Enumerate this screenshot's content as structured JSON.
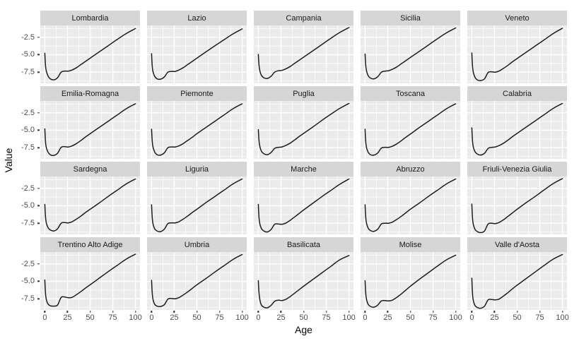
{
  "figure": {
    "xlabel": "Age",
    "ylabel": "Value"
  },
  "style": {
    "panel_bg": "#EBEBEB",
    "strip_bg": "#D6D6D6",
    "grid_color": "#FFFFFF",
    "line_color": "#1C1C1C",
    "axis_text_color": "#4D4D4D",
    "tick_mark_color": "#333333"
  },
  "chart_data": {
    "type": "line",
    "facet_variable": "Region",
    "ncol": 5,
    "title": "",
    "xlabel": "Age",
    "ylabel": "Value",
    "x_range": [
      -5,
      105
    ],
    "y_range": [
      -9.1,
      -0.8
    ],
    "x_ticks": [
      0,
      25,
      50,
      75,
      100
    ],
    "x_tick_labels": [
      "0",
      "25",
      "50",
      "75",
      "100"
    ],
    "y_ticks": [
      -2.5,
      -5.0,
      -7.5
    ],
    "y_tick_labels": [
      "-2.5",
      "-5.0",
      "-7.5"
    ],
    "x_minor": [
      12.5,
      37.5,
      62.5,
      87.5
    ],
    "y_minor": [
      -1.25,
      -3.75,
      -6.25,
      -8.75
    ],
    "grid": true,
    "legend": "none",
    "x": [
      0,
      1,
      3,
      6,
      10,
      14,
      18,
      22,
      26,
      30,
      35,
      40,
      45,
      50,
      60,
      70,
      80,
      90,
      100
    ],
    "series": [
      {
        "name": "Lombardia",
        "values": [
          -4.8,
          -6.9,
          -7.9,
          -8.45,
          -8.6,
          -8.3,
          -7.5,
          -7.35,
          -7.35,
          -7.2,
          -6.85,
          -6.4,
          -5.95,
          -5.5,
          -4.6,
          -3.7,
          -2.8,
          -1.95,
          -1.25
        ]
      },
      {
        "name": "Lazio",
        "values": [
          -4.85,
          -7.0,
          -8.0,
          -8.45,
          -8.5,
          -8.2,
          -7.5,
          -7.4,
          -7.4,
          -7.2,
          -6.85,
          -6.4,
          -5.95,
          -5.5,
          -4.6,
          -3.7,
          -2.85,
          -2.0,
          -1.3
        ]
      },
      {
        "name": "Campania",
        "values": [
          -4.95,
          -6.8,
          -7.85,
          -8.3,
          -8.4,
          -8.1,
          -7.5,
          -7.3,
          -7.25,
          -7.05,
          -6.7,
          -6.25,
          -5.8,
          -5.35,
          -4.45,
          -3.55,
          -2.65,
          -1.8,
          -1.1
        ]
      },
      {
        "name": "Sicilia",
        "values": [
          -4.9,
          -6.85,
          -7.9,
          -8.35,
          -8.45,
          -8.15,
          -7.5,
          -7.35,
          -7.3,
          -7.1,
          -6.75,
          -6.3,
          -5.85,
          -5.4,
          -4.5,
          -3.6,
          -2.7,
          -1.85,
          -1.15
        ]
      },
      {
        "name": "Veneto",
        "values": [
          -4.75,
          -7.0,
          -8.1,
          -8.6,
          -8.7,
          -8.45,
          -7.55,
          -7.45,
          -7.5,
          -7.35,
          -6.95,
          -6.5,
          -6.0,
          -5.55,
          -4.65,
          -3.75,
          -2.85,
          -1.95,
          -1.2
        ]
      },
      {
        "name": "Emilia-Romagna",
        "values": [
          -4.8,
          -7.0,
          -8.0,
          -8.5,
          -8.6,
          -8.3,
          -7.45,
          -7.35,
          -7.4,
          -7.25,
          -6.9,
          -6.45,
          -5.95,
          -5.5,
          -4.6,
          -3.7,
          -2.8,
          -1.9,
          -1.2
        ]
      },
      {
        "name": "Piemonte",
        "values": [
          -4.85,
          -6.95,
          -8.0,
          -8.5,
          -8.55,
          -8.25,
          -7.5,
          -7.4,
          -7.4,
          -7.25,
          -6.9,
          -6.45,
          -6.0,
          -5.5,
          -4.6,
          -3.7,
          -2.8,
          -1.9,
          -1.2
        ]
      },
      {
        "name": "Puglia",
        "values": [
          -4.9,
          -6.8,
          -7.9,
          -8.35,
          -8.5,
          -8.2,
          -7.6,
          -7.45,
          -7.4,
          -7.2,
          -6.85,
          -6.4,
          -5.9,
          -5.45,
          -4.55,
          -3.6,
          -2.7,
          -1.85,
          -1.15
        ]
      },
      {
        "name": "Toscana",
        "values": [
          -4.85,
          -7.0,
          -8.05,
          -8.5,
          -8.55,
          -8.25,
          -7.55,
          -7.45,
          -7.45,
          -7.3,
          -6.95,
          -6.5,
          -6.0,
          -5.55,
          -4.6,
          -3.7,
          -2.8,
          -1.9,
          -1.2
        ]
      },
      {
        "name": "Calabria",
        "values": [
          -4.65,
          -6.9,
          -7.95,
          -8.4,
          -8.55,
          -8.3,
          -7.6,
          -7.45,
          -7.4,
          -7.2,
          -6.85,
          -6.4,
          -5.9,
          -5.45,
          -4.55,
          -3.65,
          -2.75,
          -1.85,
          -1.15
        ]
      },
      {
        "name": "Sardegna",
        "values": [
          -4.8,
          -6.95,
          -8.0,
          -8.45,
          -8.6,
          -8.3,
          -7.5,
          -7.4,
          -7.45,
          -7.3,
          -6.9,
          -6.45,
          -5.95,
          -5.5,
          -4.6,
          -3.65,
          -2.75,
          -1.85,
          -1.15
        ]
      },
      {
        "name": "Liguria",
        "values": [
          -4.85,
          -7.1,
          -8.2,
          -8.6,
          -8.7,
          -8.35,
          -7.55,
          -7.45,
          -7.45,
          -7.3,
          -6.9,
          -6.45,
          -5.95,
          -5.5,
          -4.55,
          -3.65,
          -2.75,
          -1.85,
          -1.15
        ]
      },
      {
        "name": "Marche",
        "values": [
          -4.8,
          -7.05,
          -8.15,
          -8.6,
          -8.75,
          -8.4,
          -7.65,
          -7.6,
          -7.65,
          -7.5,
          -7.1,
          -6.6,
          -6.1,
          -5.6,
          -4.65,
          -3.7,
          -2.8,
          -1.9,
          -1.15
        ]
      },
      {
        "name": "Abruzzo",
        "values": [
          -4.85,
          -7.0,
          -8.1,
          -8.55,
          -8.65,
          -8.35,
          -7.6,
          -7.5,
          -7.5,
          -7.35,
          -6.95,
          -6.5,
          -6.0,
          -5.5,
          -4.6,
          -3.65,
          -2.75,
          -1.85,
          -1.15
        ]
      },
      {
        "name": "Friuli-Venezia Giulia",
        "values": [
          -4.75,
          -7.15,
          -8.25,
          -8.7,
          -8.85,
          -8.6,
          -7.6,
          -7.5,
          -7.55,
          -7.4,
          -7.0,
          -6.5,
          -6.0,
          -5.5,
          -4.55,
          -3.65,
          -2.7,
          -1.8,
          -1.1
        ]
      },
      {
        "name": "Trentino Alto Adige",
        "values": [
          -4.8,
          -7.1,
          -8.15,
          -8.5,
          -8.55,
          -8.4,
          -7.3,
          -7.25,
          -7.35,
          -7.3,
          -6.9,
          -6.45,
          -5.95,
          -5.5,
          -4.55,
          -3.6,
          -2.7,
          -1.8,
          -1.1
        ]
      },
      {
        "name": "Umbria",
        "values": [
          -4.85,
          -7.1,
          -8.2,
          -8.55,
          -8.6,
          -8.35,
          -7.55,
          -7.45,
          -7.5,
          -7.35,
          -6.95,
          -6.5,
          -6.0,
          -5.5,
          -4.6,
          -3.65,
          -2.75,
          -1.85,
          -1.15
        ]
      },
      {
        "name": "Basilicata",
        "values": [
          -4.9,
          -7.0,
          -8.3,
          -8.7,
          -8.8,
          -8.45,
          -7.85,
          -7.7,
          -7.75,
          -7.6,
          -7.2,
          -6.7,
          -6.2,
          -5.7,
          -4.75,
          -3.8,
          -2.85,
          -1.9,
          -1.3
        ]
      },
      {
        "name": "Molise",
        "values": [
          -4.9,
          -7.1,
          -8.2,
          -8.6,
          -8.7,
          -8.4,
          -7.8,
          -7.75,
          -7.8,
          -7.7,
          -7.3,
          -6.8,
          -6.25,
          -5.7,
          -4.7,
          -3.75,
          -2.8,
          -1.9,
          -1.25
        ]
      },
      {
        "name": "Valle d'Aosta",
        "values": [
          -4.55,
          -7.2,
          -8.35,
          -8.75,
          -8.85,
          -8.55,
          -7.65,
          -7.6,
          -7.65,
          -7.55,
          -7.1,
          -6.6,
          -6.05,
          -5.55,
          -4.6,
          -3.65,
          -2.7,
          -1.8,
          -1.15
        ]
      }
    ]
  }
}
